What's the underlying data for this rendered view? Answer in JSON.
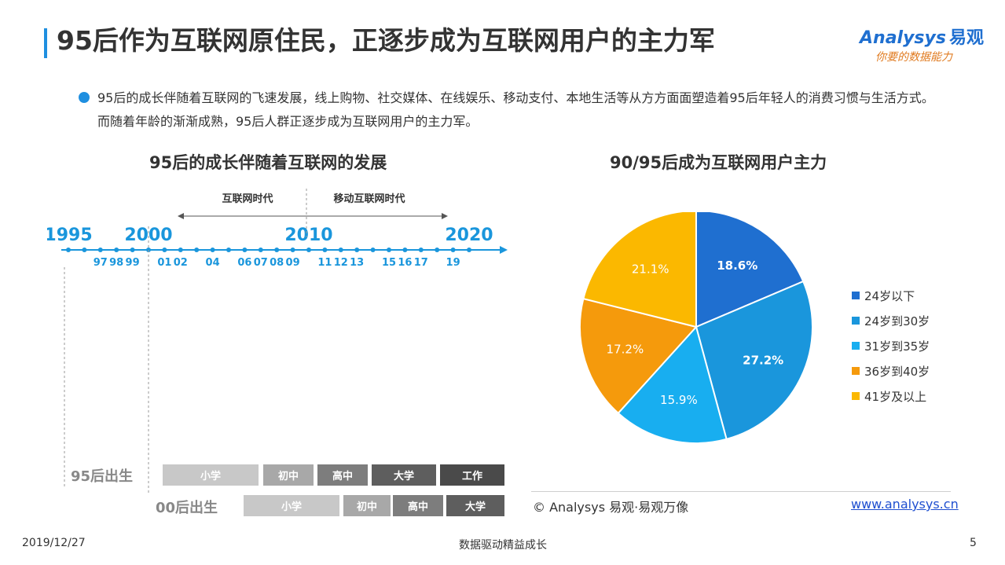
{
  "title": "95后作为互联网原住民，正逐步成为互联网用户的主力军",
  "logo": {
    "main_en": "Analysys",
    "main_cn": "易观",
    "slogan": "你要的数据能力"
  },
  "bullet": "95后的成长伴随着互联网的飞速发展，线上购物、社交媒体、在线娱乐、移动支付、本地生活等从方方面面塑造着95后年轻人的消费习惯与生活方式。而随着年龄的渐渐成熟，95后人群正逐步成为互联网用户的主力军。",
  "timeline": {
    "title": "95后的成长伴随着互联网的发展",
    "era_internet": "互联网时代",
    "era_mobile": "移动互联网时代",
    "big_years": [
      "1995",
      "2000",
      "2010",
      "2020"
    ],
    "events": [
      {
        "year": "",
        "text": ""
      },
      {
        "year": "97",
        "text": ""
      },
      {
        "year": "98",
        "text": ""
      },
      {
        "year": "99",
        "text": ""
      },
      {
        "year": "01",
        "text": ""
      },
      {
        "year": "02",
        "text": ""
      },
      {
        "year": "04",
        "text": ""
      },
      {
        "year": "06",
        "text": ""
      },
      {
        "year": "07",
        "text": ""
      },
      {
        "year": "08",
        "text": ""
      },
      {
        "year": "09",
        "text": ""
      },
      {
        "year": "11",
        "text": ""
      },
      {
        "year": "12",
        "text": ""
      },
      {
        "year": "13",
        "text": ""
      },
      {
        "year": "15",
        "text": ""
      },
      {
        "year": "16",
        "text": ""
      },
      {
        "year": "17",
        "text": ""
      },
      {
        "year": "19",
        "text": ""
      }
    ],
    "gen95_label": "95后出生",
    "gen00_label": "00后出生",
    "gen95_stages": [
      "小学",
      "初中",
      "高中",
      "大学",
      "工作"
    ],
    "gen00_stages": [
      "小学",
      "初中",
      "高中",
      "大学"
    ]
  },
  "pie": {
    "title": "90/95后成为互联网用户主力",
    "colors": [
      "#1f6fd0",
      "#1a96dc",
      "#18aef0",
      "#f59a0c",
      "#fbb800"
    ]
  },
  "chart_data": {
    "type": "pie",
    "title": "90/95后成为互联网用户主力",
    "categories": [
      "24岁以下",
      "24岁到30岁",
      "31岁到35岁",
      "36岁到40岁",
      "41岁及以上"
    ],
    "values": [
      18.6,
      27.2,
      15.9,
      17.2,
      21.1
    ],
    "value_labels": [
      "18.6%",
      "27.2%",
      "15.9%",
      "17.2%",
      "21.1%"
    ],
    "legend": "right"
  },
  "footer": {
    "copyright": "© Analysys 易观·易观万像",
    "website": "www.analysys.cn",
    "date": "2019/12/27",
    "center": "数据驱动精益成长",
    "page": "5"
  }
}
